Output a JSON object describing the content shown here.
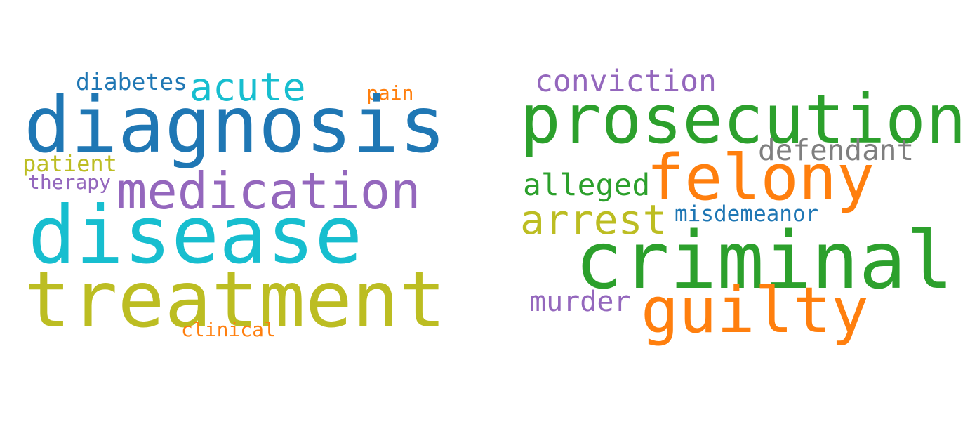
{
  "word_clouds": [
    {
      "words": [
        {
          "text": "diabetes",
          "color": "#1f77b4"
        },
        {
          "text": "acute",
          "color": "#17becf"
        },
        {
          "text": "pain",
          "color": "#ff7f0e"
        },
        {
          "text": "diagnosis",
          "color": "#1f77b4"
        },
        {
          "text": "patient",
          "color": "#bcbd22"
        },
        {
          "text": "therapy",
          "color": "#9467bd"
        },
        {
          "text": "medication",
          "color": "#9467bd"
        },
        {
          "text": "disease",
          "color": "#17becf"
        },
        {
          "text": "treatment",
          "color": "#bcbd22"
        },
        {
          "text": "clinical",
          "color": "#ff7f0e"
        }
      ]
    },
    {
      "words": [
        {
          "text": "conviction",
          "color": "#9467bd"
        },
        {
          "text": "prosecution",
          "color": "#2ca02c"
        },
        {
          "text": "defendant",
          "color": "#7f7f7f"
        },
        {
          "text": "alleged",
          "color": "#2ca02c"
        },
        {
          "text": "felony",
          "color": "#ff7f0e"
        },
        {
          "text": "arrest",
          "color": "#bcbd22"
        },
        {
          "text": "misdemeanor",
          "color": "#1f77b4"
        },
        {
          "text": "criminal",
          "color": "#2ca02c"
        },
        {
          "text": "murder",
          "color": "#9467bd"
        },
        {
          "text": "guilty",
          "color": "#ff7f0e"
        }
      ]
    }
  ]
}
